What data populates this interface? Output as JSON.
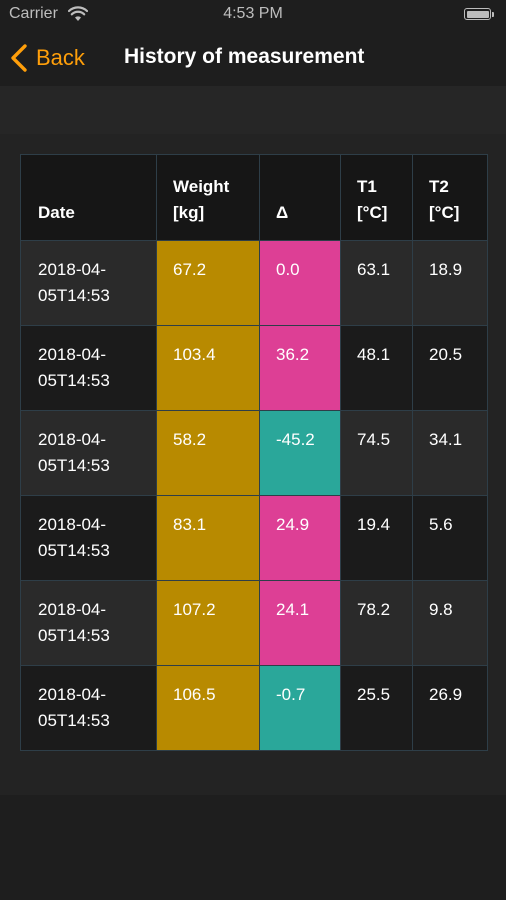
{
  "status_bar": {
    "carrier": "Carrier",
    "time": "4:53 PM"
  },
  "nav": {
    "back_label": "Back",
    "title": "History of measurement"
  },
  "colors": {
    "accent": "#ff9f0a",
    "weight": "#b88a00",
    "delta_positive": "#dd3f95",
    "delta_negative": "#2aa79a"
  },
  "table": {
    "headers": {
      "date": "Date",
      "weight_line1": "Weight",
      "weight_line2": "[kg]",
      "delta": "Δ",
      "t1_line1": "T1",
      "t1_line2": "[°C]",
      "t2_line1": "T2",
      "t2_line2": "[°C]"
    },
    "rows": [
      {
        "date_line1": "2018-04-",
        "date_line2": "05T14:53",
        "weight": "67.2",
        "delta": "0.0",
        "delta_sign": "positive",
        "t1": "63.1",
        "t2": "18.9"
      },
      {
        "date_line1": "2018-04-",
        "date_line2": "05T14:53",
        "weight": "103.4",
        "delta": "36.2",
        "delta_sign": "positive",
        "t1": "48.1",
        "t2": "20.5"
      },
      {
        "date_line1": "2018-04-",
        "date_line2": "05T14:53",
        "weight": "58.2",
        "delta": "-45.2",
        "delta_sign": "negative",
        "t1": "74.5",
        "t2": "34.1"
      },
      {
        "date_line1": "2018-04-",
        "date_line2": "05T14:53",
        "weight": "83.1",
        "delta": "24.9",
        "delta_sign": "positive",
        "t1": "19.4",
        "t2": "5.6"
      },
      {
        "date_line1": "2018-04-",
        "date_line2": "05T14:53",
        "weight": "107.2",
        "delta": "24.1",
        "delta_sign": "positive",
        "t1": "78.2",
        "t2": "9.8"
      },
      {
        "date_line1": "2018-04-",
        "date_line2": "05T14:53",
        "weight": "106.5",
        "delta": "-0.7",
        "delta_sign": "negative",
        "t1": "25.5",
        "t2": "26.9"
      }
    ]
  }
}
